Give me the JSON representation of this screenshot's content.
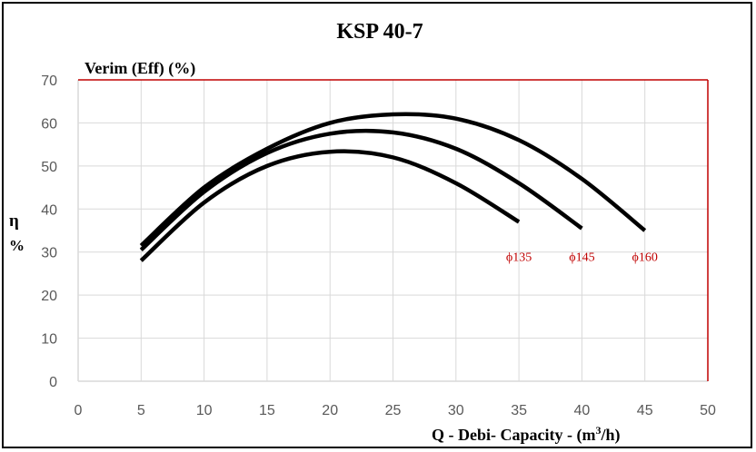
{
  "chart_data": {
    "type": "line",
    "title": "KSP 40-7",
    "plot_label": "Verim (Eff) (%)",
    "ylabel_top": "η",
    "ylabel_bottom": "%",
    "xlabel_prefix": "Q - Debi- Capacity - (m",
    "xlabel_sup": "3",
    "xlabel_suffix": "/h)",
    "xlim": [
      0,
      50
    ],
    "ylim": [
      0,
      70
    ],
    "xticks": [
      0,
      5,
      10,
      15,
      20,
      25,
      30,
      35,
      40,
      45,
      50
    ],
    "yticks": [
      0,
      10,
      20,
      30,
      40,
      50,
      60,
      70
    ],
    "grid": true,
    "colors": {
      "curve": "#000000",
      "grid": "#d9d9d9",
      "frame": "#c00000",
      "label": "#c00000",
      "tick": "#595959"
    },
    "series": [
      {
        "name": "ϕ135",
        "x": [
          5,
          10,
          15,
          20,
          25,
          30,
          35
        ],
        "y": [
          28,
          41.5,
          50,
          53.3,
          52,
          46,
          37
        ]
      },
      {
        "name": "ϕ145",
        "x": [
          5,
          10,
          15,
          20,
          25,
          30,
          35,
          40
        ],
        "y": [
          30.5,
          44,
          53,
          57.5,
          57.8,
          54,
          46,
          35.5
        ]
      },
      {
        "name": "ϕ160",
        "x": [
          5,
          10,
          15,
          20,
          25,
          30,
          35,
          40,
          45
        ],
        "y": [
          31.5,
          45,
          54,
          60,
          62,
          61,
          56,
          47,
          35
        ]
      }
    ]
  }
}
